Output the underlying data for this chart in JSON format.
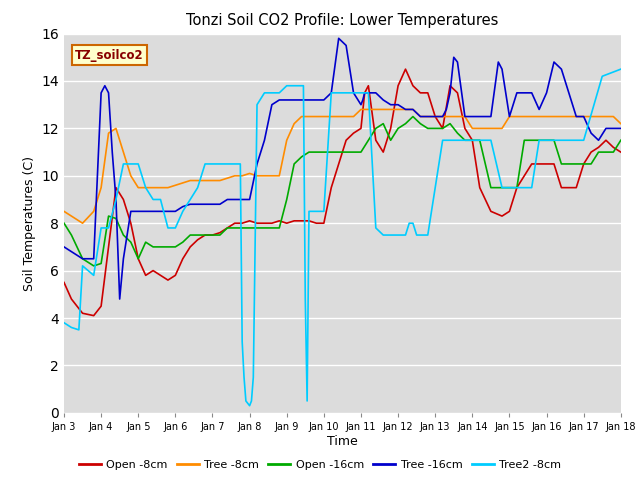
{
  "title": "Tonzi Soil CO2 Profile: Lower Temperatures",
  "xlabel": "Time",
  "ylabel": "Soil Temperatures (C)",
  "ylim": [
    0,
    16
  ],
  "yticks": [
    0,
    2,
    4,
    6,
    8,
    10,
    12,
    14,
    16
  ],
  "bg_color": "#dcdcdc",
  "legend_label": "TZ_soilco2",
  "series_labels": [
    "Open -8cm",
    "Tree -8cm",
    "Open -16cm",
    "Tree -16cm",
    "Tree2 -8cm"
  ],
  "series_colors": [
    "#cc0000",
    "#ff8c00",
    "#00aa00",
    "#0000cc",
    "#00ccff"
  ],
  "x_tick_labels": [
    "Jan 3",
    "Jan 4",
    "Jan 5",
    "Jan 6",
    "Jan 7",
    "Jan 8",
    "Jan 9",
    "Jan 10",
    "Jan 11",
    "Jan 12",
    "Jan 13",
    "Jan 14",
    "Jan 15",
    "Jan 16",
    "Jan 17",
    "Jan 18"
  ],
  "x_tick_pos": [
    3,
    4,
    5,
    6,
    7,
    8,
    9,
    10,
    11,
    12,
    13,
    14,
    15,
    16,
    17,
    18
  ],
  "open8_x": [
    3.0,
    3.2,
    3.5,
    3.8,
    4.0,
    4.2,
    4.4,
    4.6,
    4.8,
    5.0,
    5.2,
    5.4,
    5.6,
    5.8,
    6.0,
    6.2,
    6.4,
    6.6,
    6.8,
    7.0,
    7.2,
    7.4,
    7.6,
    7.8,
    8.0,
    8.2,
    8.4,
    8.6,
    8.8,
    9.0,
    9.2,
    9.4,
    9.6,
    9.8,
    10.0,
    10.2,
    10.4,
    10.6,
    10.8,
    11.0,
    11.1,
    11.2,
    11.4,
    11.6,
    11.8,
    12.0,
    12.2,
    12.4,
    12.6,
    12.8,
    13.0,
    13.2,
    13.4,
    13.6,
    13.8,
    14.0,
    14.2,
    14.5,
    14.8,
    15.0,
    15.2,
    15.4,
    15.6,
    15.8,
    16.0,
    16.2,
    16.4,
    16.6,
    16.8,
    17.0,
    17.2,
    17.4,
    17.6,
    17.8,
    18.0
  ],
  "open8_y": [
    5.5,
    4.8,
    4.2,
    4.1,
    4.5,
    7.0,
    9.5,
    9.0,
    8.0,
    6.5,
    5.8,
    6.0,
    5.8,
    5.6,
    5.8,
    6.5,
    7.0,
    7.3,
    7.5,
    7.5,
    7.6,
    7.8,
    8.0,
    8.0,
    8.1,
    8.0,
    8.0,
    8.0,
    8.1,
    8.0,
    8.1,
    8.1,
    8.1,
    8.0,
    8.0,
    9.5,
    10.5,
    11.5,
    11.8,
    12.0,
    13.5,
    13.8,
    11.5,
    11.0,
    12.0,
    13.8,
    14.5,
    13.8,
    13.5,
    13.5,
    12.5,
    12.0,
    13.8,
    13.5,
    12.0,
    11.5,
    9.5,
    8.5,
    8.3,
    8.5,
    9.5,
    10.0,
    10.5,
    10.5,
    10.5,
    10.5,
    9.5,
    9.5,
    9.5,
    10.5,
    11.0,
    11.2,
    11.5,
    11.2,
    11.0
  ],
  "tree8_x": [
    3.0,
    3.2,
    3.5,
    3.8,
    4.0,
    4.2,
    4.4,
    4.6,
    4.8,
    5.0,
    5.2,
    5.4,
    5.6,
    5.8,
    6.0,
    6.2,
    6.4,
    6.6,
    6.8,
    7.0,
    7.2,
    7.4,
    7.6,
    7.8,
    8.0,
    8.2,
    8.4,
    8.6,
    8.8,
    9.0,
    9.2,
    9.4,
    9.6,
    9.8,
    10.0,
    10.2,
    10.4,
    10.6,
    10.8,
    11.0,
    11.2,
    11.4,
    11.6,
    11.8,
    12.0,
    12.2,
    12.4,
    12.6,
    12.8,
    13.0,
    13.2,
    13.4,
    13.6,
    13.8,
    14.0,
    14.2,
    14.5,
    14.8,
    15.0,
    15.2,
    15.4,
    15.6,
    15.8,
    16.0,
    16.2,
    16.4,
    16.6,
    16.8,
    17.0,
    17.2,
    17.4,
    17.6,
    17.8,
    18.0
  ],
  "tree8_y": [
    8.5,
    8.3,
    8.0,
    8.5,
    9.5,
    11.8,
    12.0,
    11.0,
    10.0,
    9.5,
    9.5,
    9.5,
    9.5,
    9.5,
    9.6,
    9.7,
    9.8,
    9.8,
    9.8,
    9.8,
    9.8,
    9.9,
    10.0,
    10.0,
    10.1,
    10.0,
    10.0,
    10.0,
    10.0,
    11.5,
    12.2,
    12.5,
    12.5,
    12.5,
    12.5,
    12.5,
    12.5,
    12.5,
    12.5,
    12.8,
    12.8,
    12.8,
    12.8,
    12.8,
    12.8,
    12.8,
    12.8,
    12.5,
    12.5,
    12.5,
    12.5,
    12.5,
    12.5,
    12.5,
    12.0,
    12.0,
    12.0,
    12.0,
    12.5,
    12.5,
    12.5,
    12.5,
    12.5,
    12.5,
    12.5,
    12.5,
    12.5,
    12.5,
    12.5,
    12.5,
    12.5,
    12.5,
    12.5,
    12.2
  ],
  "open16_x": [
    3.0,
    3.2,
    3.5,
    3.8,
    4.0,
    4.2,
    4.4,
    4.6,
    4.8,
    5.0,
    5.2,
    5.4,
    5.6,
    5.8,
    6.0,
    6.2,
    6.4,
    6.6,
    6.8,
    7.0,
    7.2,
    7.4,
    7.6,
    7.8,
    8.0,
    8.2,
    8.4,
    8.6,
    8.8,
    9.0,
    9.2,
    9.4,
    9.6,
    9.8,
    10.0,
    10.2,
    10.4,
    10.6,
    10.8,
    11.0,
    11.2,
    11.4,
    11.6,
    11.8,
    12.0,
    12.2,
    12.4,
    12.6,
    12.8,
    13.0,
    13.2,
    13.4,
    13.6,
    13.8,
    14.0,
    14.2,
    14.5,
    14.8,
    15.0,
    15.2,
    15.4,
    15.6,
    15.8,
    16.0,
    16.2,
    16.4,
    16.6,
    16.8,
    17.0,
    17.2,
    17.4,
    17.6,
    17.8,
    18.0
  ],
  "open16_y": [
    8.0,
    7.5,
    6.5,
    6.2,
    6.3,
    8.3,
    8.2,
    7.5,
    7.2,
    6.5,
    7.2,
    7.0,
    7.0,
    7.0,
    7.0,
    7.2,
    7.5,
    7.5,
    7.5,
    7.5,
    7.5,
    7.8,
    7.8,
    7.8,
    7.8,
    7.8,
    7.8,
    7.8,
    7.8,
    9.0,
    10.5,
    10.8,
    11.0,
    11.0,
    11.0,
    11.0,
    11.0,
    11.0,
    11.0,
    11.0,
    11.5,
    12.0,
    12.2,
    11.5,
    12.0,
    12.2,
    12.5,
    12.2,
    12.0,
    12.0,
    12.0,
    12.2,
    11.8,
    11.5,
    11.5,
    11.5,
    9.5,
    9.5,
    9.5,
    9.5,
    11.5,
    11.5,
    11.5,
    11.5,
    11.5,
    10.5,
    10.5,
    10.5,
    10.5,
    10.5,
    11.0,
    11.0,
    11.0,
    11.5
  ],
  "tree16_x": [
    3.0,
    3.2,
    3.5,
    3.8,
    4.0,
    4.1,
    4.2,
    4.3,
    4.4,
    4.5,
    4.6,
    4.8,
    5.0,
    5.2,
    5.4,
    5.6,
    5.8,
    6.0,
    6.2,
    6.4,
    6.6,
    6.8,
    7.0,
    7.2,
    7.4,
    7.6,
    7.8,
    8.0,
    8.2,
    8.4,
    8.6,
    8.8,
    9.0,
    9.2,
    9.4,
    9.6,
    9.8,
    10.0,
    10.2,
    10.4,
    10.6,
    10.8,
    11.0,
    11.05,
    11.1,
    11.2,
    11.4,
    11.6,
    11.8,
    12.0,
    12.2,
    12.4,
    12.6,
    12.8,
    13.0,
    13.2,
    13.3,
    13.4,
    13.5,
    13.6,
    13.8,
    14.0,
    14.2,
    14.5,
    14.7,
    14.8,
    15.0,
    15.2,
    15.4,
    15.6,
    15.8,
    16.0,
    16.2,
    16.4,
    16.6,
    16.8,
    17.0,
    17.2,
    17.4,
    17.6,
    18.0
  ],
  "tree16_y": [
    7.0,
    6.8,
    6.5,
    6.5,
    13.5,
    13.8,
    13.5,
    11.0,
    9.0,
    4.8,
    6.5,
    8.5,
    8.5,
    8.5,
    8.5,
    8.5,
    8.5,
    8.5,
    8.7,
    8.8,
    8.8,
    8.8,
    8.8,
    8.8,
    9.0,
    9.0,
    9.0,
    9.0,
    10.5,
    11.5,
    13.0,
    13.2,
    13.2,
    13.2,
    13.2,
    13.2,
    13.2,
    13.2,
    13.5,
    15.8,
    15.5,
    13.5,
    13.0,
    13.2,
    13.5,
    13.5,
    13.5,
    13.2,
    13.0,
    13.0,
    12.8,
    12.8,
    12.5,
    12.5,
    12.5,
    12.5,
    12.8,
    13.5,
    15.0,
    14.8,
    12.5,
    12.5,
    12.5,
    12.5,
    14.8,
    14.5,
    12.5,
    13.5,
    13.5,
    13.5,
    12.8,
    13.5,
    14.8,
    14.5,
    13.5,
    12.5,
    12.5,
    11.8,
    11.5,
    12.0,
    12.0
  ],
  "tree2_x": [
    3.0,
    3.2,
    3.4,
    3.5,
    3.8,
    4.0,
    4.2,
    4.4,
    4.6,
    4.8,
    5.0,
    5.2,
    5.4,
    5.6,
    5.8,
    6.0,
    6.2,
    6.4,
    6.6,
    6.8,
    7.0,
    7.2,
    7.4,
    7.6,
    7.75,
    7.8,
    7.85,
    7.9,
    8.0,
    8.05,
    8.1,
    8.2,
    8.4,
    8.6,
    8.8,
    9.0,
    9.2,
    9.4,
    9.45,
    9.5,
    9.55,
    9.6,
    9.8,
    10.0,
    10.2,
    10.4,
    10.6,
    10.8,
    11.0,
    11.2,
    11.4,
    11.6,
    11.8,
    12.0,
    12.2,
    12.3,
    12.4,
    12.5,
    12.6,
    12.8,
    13.0,
    13.2,
    13.5,
    13.8,
    14.0,
    14.2,
    14.5,
    14.8,
    15.0,
    15.2,
    15.4,
    15.6,
    15.8,
    16.0,
    16.2,
    16.4,
    16.6,
    16.8,
    17.0,
    17.5,
    18.0
  ],
  "tree2_y": [
    3.8,
    3.6,
    3.5,
    6.2,
    5.8,
    7.8,
    7.8,
    9.0,
    10.5,
    10.5,
    10.5,
    9.5,
    9.0,
    9.0,
    7.8,
    7.8,
    8.5,
    9.0,
    9.5,
    10.5,
    10.5,
    10.5,
    10.5,
    10.5,
    10.5,
    3.0,
    1.5,
    0.5,
    0.3,
    0.5,
    1.5,
    13.0,
    13.5,
    13.5,
    13.5,
    13.8,
    13.8,
    13.8,
    13.8,
    4.8,
    0.5,
    8.5,
    8.5,
    8.5,
    13.5,
    13.5,
    13.5,
    13.5,
    13.5,
    13.5,
    7.8,
    7.5,
    7.5,
    7.5,
    7.5,
    8.0,
    8.0,
    7.5,
    7.5,
    7.5,
    9.5,
    11.5,
    11.5,
    11.5,
    11.5,
    11.5,
    11.5,
    9.5,
    9.5,
    9.5,
    9.5,
    9.5,
    11.5,
    11.5,
    11.5,
    11.5,
    11.5,
    11.5,
    11.5,
    14.2,
    14.5
  ]
}
